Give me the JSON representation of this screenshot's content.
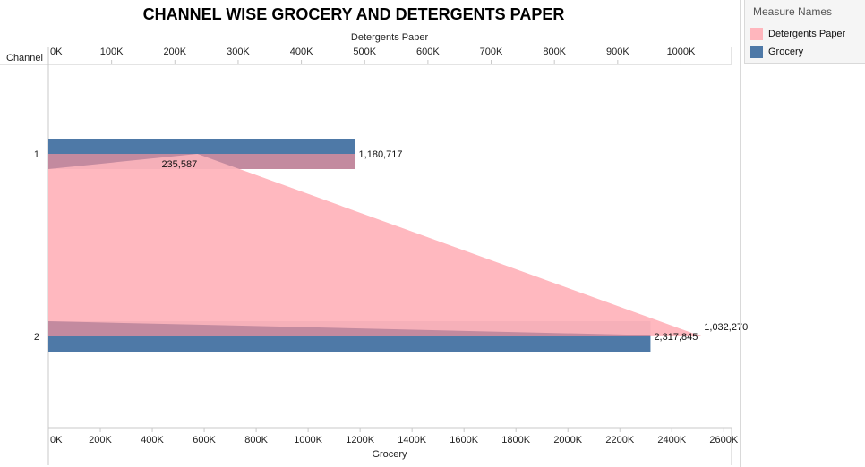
{
  "chart_data": {
    "type": "bar",
    "title": "CHANNEL WISE GROCERY AND DETERGENTS PAPER",
    "row_header": "Channel",
    "categories": [
      "1",
      "2"
    ],
    "series": [
      {
        "name": "Grocery",
        "values": [
          1180717,
          2317845
        ],
        "value_labels": [
          "1,180,717",
          "2,317,845"
        ],
        "color": "#4e79a7",
        "axis": "bottom"
      },
      {
        "name": "Detergents Paper",
        "values": [
          235587,
          1032270
        ],
        "value_labels": [
          "235,587",
          "1,032,270"
        ],
        "color": "#ffb6bd",
        "axis": "top"
      }
    ],
    "top_axis": {
      "label": "Detergents Paper",
      "range": [
        0,
        1080000
      ],
      "ticks": [
        0,
        100000,
        200000,
        300000,
        400000,
        500000,
        600000,
        700000,
        800000,
        900000,
        1000000
      ],
      "tick_labels": [
        "0K",
        "100K",
        "200K",
        "300K",
        "400K",
        "500K",
        "600K",
        "700K",
        "800K",
        "900K",
        "1000K"
      ]
    },
    "bottom_axis": {
      "label": "Grocery",
      "range": [
        0,
        2630000
      ],
      "ticks": [
        0,
        200000,
        400000,
        600000,
        800000,
        1000000,
        1200000,
        1400000,
        1600000,
        1800000,
        2000000,
        2200000,
        2400000,
        2600000
      ],
      "tick_labels": [
        "0K",
        "200K",
        "400K",
        "600K",
        "800K",
        "1000K",
        "1200K",
        "1400K",
        "1600K",
        "1800K",
        "2000K",
        "2200K",
        "2400K",
        "2600K"
      ]
    },
    "legend": {
      "title": "Measure Names",
      "items": [
        "Detergents Paper",
        "Grocery"
      ],
      "position": "top-right"
    }
  }
}
